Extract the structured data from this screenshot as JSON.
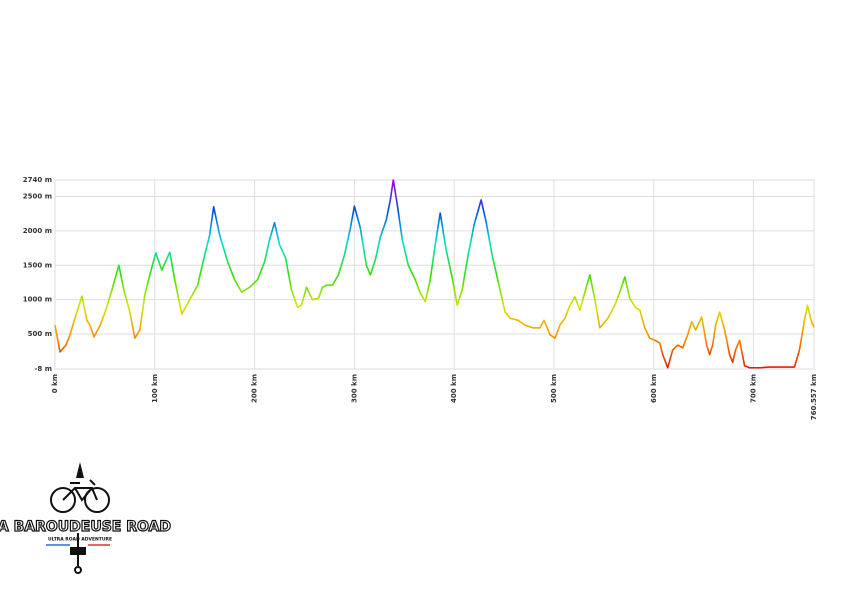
{
  "chart_data": {
    "type": "line",
    "x": [
      0,
      5,
      11,
      15,
      20,
      27,
      32,
      35,
      39,
      45,
      51,
      57,
      64,
      69,
      75,
      80,
      85,
      90,
      95,
      101,
      107,
      115,
      120,
      127,
      135,
      143,
      150,
      155,
      159,
      165,
      173,
      180,
      187,
      195,
      203,
      210,
      215,
      220,
      225,
      231,
      237,
      243,
      247,
      252,
      258,
      264,
      268,
      272,
      278,
      284,
      290,
      296,
      300,
      306,
      312,
      316,
      321,
      326,
      332,
      336,
      339,
      343,
      348,
      354,
      361,
      366,
      371,
      376,
      381,
      386,
      392,
      398,
      403,
      408,
      414,
      420,
      427,
      432,
      438,
      446,
      451,
      456,
      464,
      471,
      479,
      486,
      490,
      496,
      501,
      506,
      511,
      516,
      521,
      526,
      531,
      536,
      541,
      546,
      554,
      561,
      566,
      571,
      576,
      582,
      586,
      591,
      596,
      601,
      606,
      609,
      614,
      619,
      624,
      629,
      634,
      638,
      642,
      648,
      653,
      656,
      659,
      662,
      666,
      671,
      676,
      679,
      682,
      686,
      691,
      696,
      706,
      716,
      726,
      736,
      741,
      746,
      751,
      754,
      758,
      760.557
    ],
    "values": [
      630,
      240,
      340,
      490,
      730,
      1050,
      700,
      630,
      460,
      620,
      850,
      1140,
      1500,
      1140,
      820,
      440,
      560,
      1070,
      1360,
      1680,
      1430,
      1690,
      1290,
      790,
      1000,
      1210,
      1650,
      1940,
      2350,
      1940,
      1550,
      1290,
      1110,
      1180,
      1290,
      1550,
      1870,
      2120,
      1800,
      1610,
      1140,
      890,
      920,
      1180,
      1000,
      1020,
      1180,
      1210,
      1210,
      1360,
      1650,
      2040,
      2360,
      2040,
      1500,
      1360,
      1580,
      1910,
      2160,
      2450,
      2740,
      2380,
      1870,
      1500,
      1290,
      1100,
      970,
      1290,
      1800,
      2260,
      1720,
      1320,
      920,
      1140,
      1650,
      2090,
      2450,
      2130,
      1650,
      1140,
      820,
      730,
      700,
      630,
      590,
      590,
      700,
      490,
      440,
      630,
      730,
      920,
      1040,
      850,
      1110,
      1360,
      1000,
      590,
      730,
      920,
      1110,
      1330,
      1020,
      880,
      850,
      590,
      440,
      410,
      370,
      200,
      10,
      270,
      340,
      300,
      490,
      680,
      560,
      750,
      340,
      200,
      340,
      630,
      820,
      560,
      200,
      90,
      270,
      410,
      40,
      10,
      10,
      20,
      20,
      20,
      20,
      270,
      700,
      920,
      680,
      600
    ],
    "xlim": [
      0,
      760.557
    ],
    "ylim": [
      -8,
      2740
    ],
    "xticks": [
      {
        "value": 0,
        "label": "0 km"
      },
      {
        "value": 100,
        "label": "100 km"
      },
      {
        "value": 200,
        "label": "200 km"
      },
      {
        "value": 300,
        "label": "300 km"
      },
      {
        "value": 400,
        "label": "400 km"
      },
      {
        "value": 500,
        "label": "500 km"
      },
      {
        "value": 600,
        "label": "600 km"
      },
      {
        "value": 700,
        "label": "700 km"
      },
      {
        "value": 760.557,
        "label": "760.557 km"
      }
    ],
    "yticks": [
      {
        "value": -8,
        "label": "-8 m"
      },
      {
        "value": 500,
        "label": "500 m"
      },
      {
        "value": 1000,
        "label": "1000 m"
      },
      {
        "value": 1500,
        "label": "1500 m"
      },
      {
        "value": 2000,
        "label": "2000 m"
      },
      {
        "value": 2500,
        "label": "2500 m"
      },
      {
        "value": 2740,
        "label": "2740 m"
      }
    ],
    "grid": true,
    "color_scale": [
      "#e01a00",
      "#ff8a00",
      "#d4e400",
      "#34e000",
      "#00e0cc",
      "#0050e0",
      "#a400e0"
    ]
  },
  "logo": {
    "title": "LA BAROUDEUSE ROAD",
    "subtitle": "ULTRA ROAD ADVENTURE"
  }
}
